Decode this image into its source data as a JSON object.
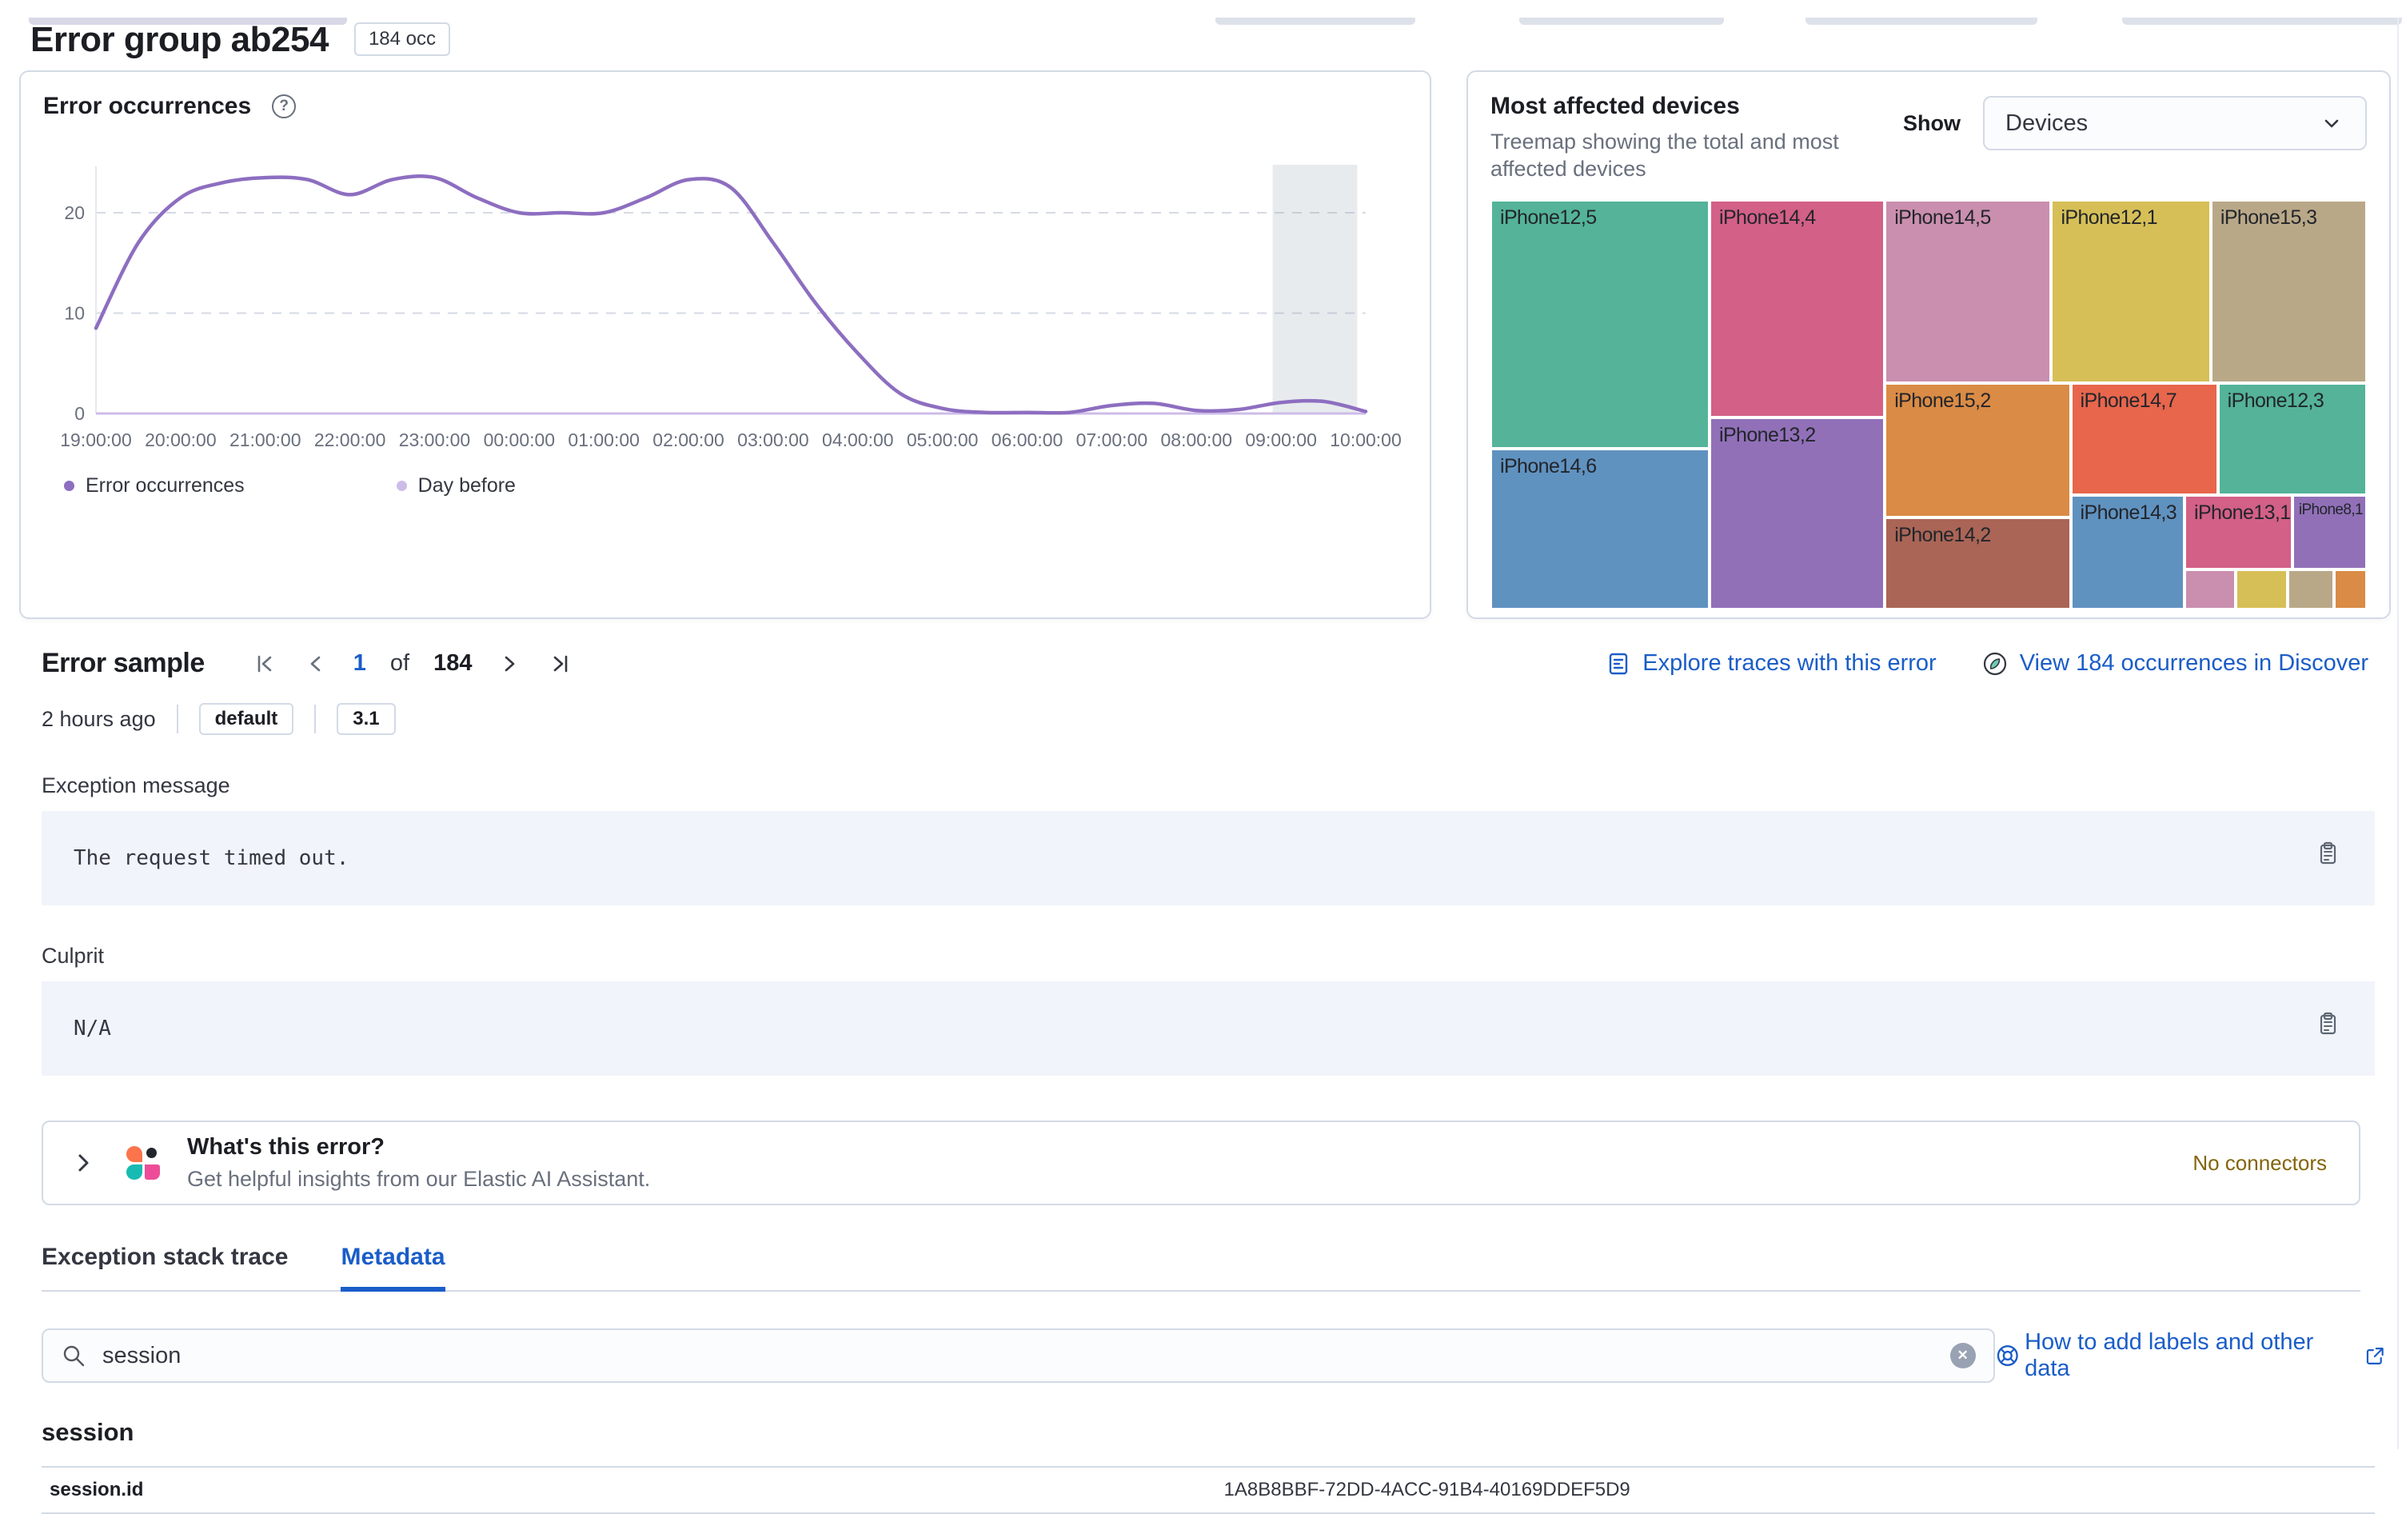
{
  "header": {
    "title": "Error group ab254",
    "occurrences_badge": "184 occ"
  },
  "occurrences_panel": {
    "title": "Error occurrences",
    "help_glyph": "?"
  },
  "devices_panel": {
    "title": "Most affected devices",
    "subtitle": "Treemap showing the total and most affected devices",
    "show_label": "Show",
    "show_value": "Devices"
  },
  "error_sample": {
    "title": "Error sample",
    "pagination": {
      "current": "1",
      "of_label": "of",
      "total": "184"
    },
    "actions": {
      "explore_traces": "Explore traces with this error",
      "view_occurrences": "View 184 occurrences in Discover"
    },
    "meta": {
      "timestamp": "2 hours ago",
      "badges": [
        "default",
        "3.1"
      ]
    },
    "exception_message": {
      "label": "Exception message",
      "value": "The request timed out."
    },
    "culprit": {
      "label": "Culprit",
      "value": "N/A"
    },
    "ai_callout": {
      "title": "What's this error?",
      "subtitle": "Get helpful insights from our Elastic AI Assistant.",
      "status": "No connectors"
    },
    "tabs": [
      "Exception stack trace",
      "Metadata"
    ],
    "search": {
      "value": "session",
      "clear_glyph": "✕",
      "help_link": "How to add labels and other data"
    },
    "metadata": {
      "group": "session",
      "rows": [
        {
          "key": "session.id",
          "value": "1A8B8BBF-72DD-4ACC-91B4-40169DDEF5D9"
        }
      ]
    }
  },
  "colors": {
    "link": "#1A5DC8",
    "warning_text": "#83650A",
    "panel_border": "#D3DAE6",
    "code_bg": "#F1F4FA",
    "grid": "#D5DAE4",
    "axis_text": "#69707D",
    "band": "#98A2B3"
  },
  "chart_data": [
    {
      "type": "line",
      "title": "Error occurrences",
      "x_step_minutes": 30,
      "x_tick_labels": [
        "19:00:00",
        "20:00:00",
        "21:00:00",
        "22:00:00",
        "23:00:00",
        "00:00:00",
        "01:00:00",
        "02:00:00",
        "03:00:00",
        "04:00:00",
        "05:00:00",
        "06:00:00",
        "07:00:00",
        "08:00:00",
        "09:00:00",
        "10:00:00"
      ],
      "y_ticks": [
        0,
        10,
        20
      ],
      "ylim": [
        0,
        26
      ],
      "grid": "horizontal-dashed",
      "legend_position": "bottom",
      "series": [
        {
          "name": "Error occurrences",
          "color": "#8D6EC0",
          "values": [
            8.5,
            17,
            21.5,
            23,
            23.5,
            23.3,
            21.8,
            23.3,
            23.5,
            21.5,
            20,
            20,
            20,
            21.5,
            23.3,
            22.5,
            17,
            11,
            6,
            2,
            0.5,
            0.1,
            0.1,
            0.1,
            0.8,
            1,
            0.3,
            0.4,
            1.1,
            1.2,
            0.2
          ]
        },
        {
          "name": "Day before",
          "color": "#CDBCE8",
          "values": [
            0,
            0,
            0,
            0,
            0,
            0,
            0,
            0,
            0,
            0,
            0,
            0,
            0,
            0,
            0,
            0,
            0,
            0,
            0,
            0,
            0,
            0,
            0,
            0,
            0,
            0,
            0,
            0,
            0,
            0,
            0
          ]
        }
      ],
      "annotation_band": {
        "start_index": 27.8,
        "end_index": 29.8,
        "note": "highlighted current hour ~09:00-10:00"
      }
    },
    {
      "type": "treemap",
      "title": "Most affected devices",
      "tiles": [
        {
          "label": "iPhone12,5",
          "color": "#54B399",
          "x": 0,
          "y": 0,
          "w": 25.0,
          "h": 60.8
        },
        {
          "label": "iPhone14,6",
          "color": "#6092C0",
          "x": 0,
          "y": 60.8,
          "w": 25.0,
          "h": 39.2
        },
        {
          "label": "iPhone14,4",
          "color": "#D36086",
          "x": 25.0,
          "y": 0,
          "w": 20.0,
          "h": 53.2
        },
        {
          "label": "iPhone13,2",
          "color": "#9170B8",
          "x": 25.0,
          "y": 53.2,
          "w": 20.0,
          "h": 46.8
        },
        {
          "label": "iPhone14,5",
          "color": "#CA8EAE",
          "x": 45.0,
          "y": 0,
          "w": 19.0,
          "h": 44.7
        },
        {
          "label": "iPhone12,1",
          "color": "#D6BF57",
          "x": 64.0,
          "y": 0,
          "w": 18.2,
          "h": 44.7
        },
        {
          "label": "iPhone15,3",
          "color": "#B9A888",
          "x": 82.2,
          "y": 0,
          "w": 17.8,
          "h": 44.7
        },
        {
          "label": "iPhone15,2",
          "color": "#DA8B45",
          "x": 45.0,
          "y": 44.7,
          "w": 21.2,
          "h": 32.8
        },
        {
          "label": "iPhone14,7",
          "color": "#E7664C",
          "x": 66.2,
          "y": 44.7,
          "w": 16.8,
          "h": 27.3
        },
        {
          "label": "iPhone12,3",
          "color": "#54B399",
          "x": 83.0,
          "y": 44.7,
          "w": 17.0,
          "h": 27.3
        },
        {
          "label": "iPhone14,2",
          "color": "#AA6556",
          "x": 45.0,
          "y": 77.5,
          "w": 21.2,
          "h": 22.5
        },
        {
          "label": "iPhone14,3",
          "color": "#6092C0",
          "x": 66.2,
          "y": 72.0,
          "w": 13.0,
          "h": 28.0
        },
        {
          "label": "iPhone13,1",
          "color": "#D36086",
          "x": 79.2,
          "y": 72.0,
          "w": 12.3,
          "h": 18.3
        },
        {
          "label": "iPhone8,1",
          "color": "#9170B8",
          "x": 91.5,
          "y": 72.0,
          "w": 8.5,
          "h": 18.3,
          "small": true
        },
        {
          "label": "",
          "color": "#CA8EAE",
          "x": 79.2,
          "y": 90.3,
          "w": 5.8,
          "h": 9.7
        },
        {
          "label": "",
          "color": "#D6BF57",
          "x": 85.0,
          "y": 90.3,
          "w": 6.0,
          "h": 9.7
        },
        {
          "label": "",
          "color": "#B9A888",
          "x": 91.0,
          "y": 90.3,
          "w": 5.3,
          "h": 9.7
        },
        {
          "label": "",
          "color": "#DA8B45",
          "x": 96.3,
          "y": 90.3,
          "w": 3.7,
          "h": 9.7
        }
      ]
    }
  ]
}
